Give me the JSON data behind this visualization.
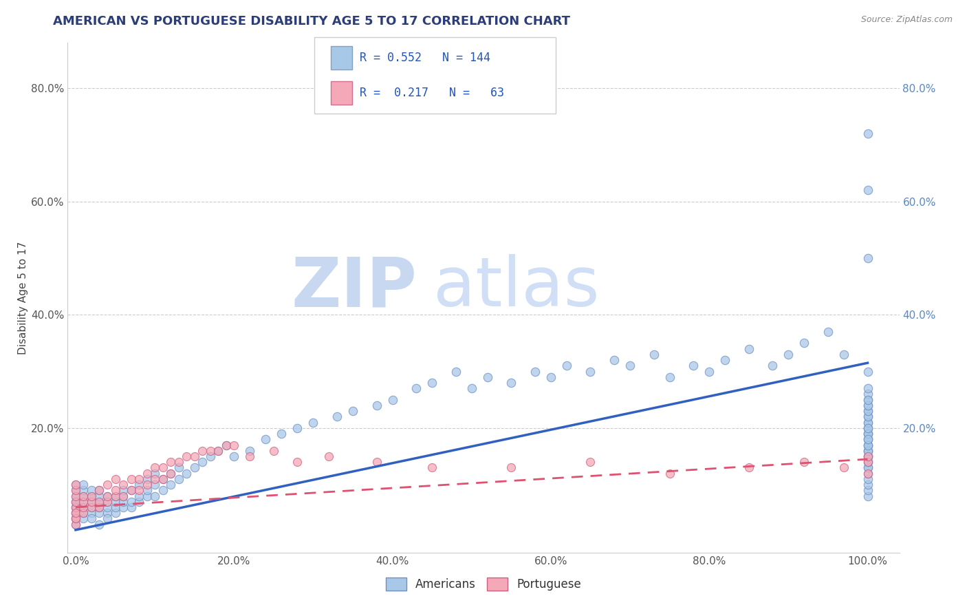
{
  "title": "AMERICAN VS PORTUGUESE DISABILITY AGE 5 TO 17 CORRELATION CHART",
  "source": "Source: ZipAtlas.com",
  "ylabel": "Disability Age 5 to 17",
  "xlabel": "",
  "xlim": [
    -0.01,
    1.04
  ],
  "ylim": [
    -0.02,
    0.88
  ],
  "xtick_vals": [
    0.0,
    0.2,
    0.4,
    0.6,
    0.8,
    1.0
  ],
  "ytick_vals": [
    0.2,
    0.4,
    0.6,
    0.8
  ],
  "R_american": 0.552,
  "N_american": 144,
  "R_portuguese": 0.217,
  "N_portuguese": 63,
  "color_american": "#A8C8E8",
  "color_portuguese": "#F4A8B8",
  "color_line_american": "#3060C0",
  "color_line_portuguese": "#E05070",
  "line_portuguese_style": "--",
  "seed": 12345,
  "am_x": [
    0.0,
    0.0,
    0.0,
    0.0,
    0.0,
    0.0,
    0.0,
    0.0,
    0.0,
    0.0,
    0.0,
    0.0,
    0.01,
    0.01,
    0.01,
    0.01,
    0.01,
    0.01,
    0.01,
    0.02,
    0.02,
    0.02,
    0.02,
    0.02,
    0.02,
    0.03,
    0.03,
    0.03,
    0.03,
    0.03,
    0.03,
    0.04,
    0.04,
    0.04,
    0.04,
    0.04,
    0.05,
    0.05,
    0.05,
    0.05,
    0.06,
    0.06,
    0.06,
    0.06,
    0.07,
    0.07,
    0.07,
    0.08,
    0.08,
    0.08,
    0.09,
    0.09,
    0.09,
    0.1,
    0.1,
    0.1,
    0.11,
    0.11,
    0.12,
    0.12,
    0.13,
    0.13,
    0.14,
    0.15,
    0.16,
    0.17,
    0.18,
    0.19,
    0.2,
    0.22,
    0.24,
    0.26,
    0.28,
    0.3,
    0.33,
    0.35,
    0.38,
    0.4,
    0.43,
    0.45,
    0.48,
    0.5,
    0.52,
    0.55,
    0.58,
    0.6,
    0.62,
    0.65,
    0.68,
    0.7,
    0.73,
    0.75,
    0.78,
    0.8,
    0.82,
    0.85,
    0.88,
    0.9,
    0.92,
    0.95,
    0.97,
    1.0,
    1.0,
    1.0,
    1.0,
    1.0,
    1.0,
    1.0,
    1.0,
    1.0,
    1.0,
    1.0,
    1.0,
    1.0,
    1.0,
    1.0,
    1.0,
    1.0,
    1.0,
    1.0,
    1.0,
    1.0,
    1.0,
    1.0,
    1.0,
    1.0,
    1.0,
    1.0,
    1.0,
    1.0,
    1.0,
    1.0,
    1.0,
    1.0,
    1.0,
    1.0,
    1.0,
    1.0,
    1.0,
    1.0,
    1.0,
    1.0,
    1.0,
    1.0
  ],
  "am_y": [
    0.04,
    0.05,
    0.05,
    0.06,
    0.06,
    0.07,
    0.07,
    0.08,
    0.03,
    0.04,
    0.09,
    0.1,
    0.04,
    0.05,
    0.06,
    0.07,
    0.08,
    0.09,
    0.1,
    0.05,
    0.06,
    0.07,
    0.08,
    0.09,
    0.04,
    0.05,
    0.06,
    0.07,
    0.08,
    0.09,
    0.03,
    0.05,
    0.06,
    0.07,
    0.08,
    0.04,
    0.05,
    0.06,
    0.07,
    0.08,
    0.06,
    0.07,
    0.08,
    0.09,
    0.06,
    0.07,
    0.09,
    0.07,
    0.08,
    0.1,
    0.08,
    0.09,
    0.11,
    0.08,
    0.1,
    0.12,
    0.09,
    0.11,
    0.1,
    0.12,
    0.11,
    0.13,
    0.12,
    0.13,
    0.14,
    0.15,
    0.16,
    0.17,
    0.15,
    0.16,
    0.18,
    0.19,
    0.2,
    0.21,
    0.22,
    0.23,
    0.24,
    0.25,
    0.27,
    0.28,
    0.3,
    0.27,
    0.29,
    0.28,
    0.3,
    0.29,
    0.31,
    0.3,
    0.32,
    0.31,
    0.33,
    0.29,
    0.31,
    0.3,
    0.32,
    0.34,
    0.31,
    0.33,
    0.35,
    0.37,
    0.33,
    0.08,
    0.09,
    0.1,
    0.11,
    0.12,
    0.13,
    0.14,
    0.15,
    0.16,
    0.17,
    0.18,
    0.19,
    0.2,
    0.13,
    0.14,
    0.15,
    0.16,
    0.17,
    0.21,
    0.22,
    0.23,
    0.18,
    0.19,
    0.2,
    0.21,
    0.15,
    0.16,
    0.22,
    0.23,
    0.24,
    0.25,
    0.19,
    0.2,
    0.26,
    0.27,
    0.17,
    0.18,
    0.24,
    0.25,
    0.5,
    0.62,
    0.3,
    0.72
  ],
  "pt_x": [
    0.0,
    0.0,
    0.0,
    0.0,
    0.0,
    0.0,
    0.0,
    0.0,
    0.0,
    0.0,
    0.01,
    0.01,
    0.01,
    0.01,
    0.02,
    0.02,
    0.02,
    0.03,
    0.03,
    0.03,
    0.04,
    0.04,
    0.04,
    0.05,
    0.05,
    0.05,
    0.06,
    0.06,
    0.07,
    0.07,
    0.08,
    0.08,
    0.09,
    0.09,
    0.1,
    0.1,
    0.11,
    0.11,
    0.12,
    0.12,
    0.13,
    0.14,
    0.15,
    0.16,
    0.17,
    0.18,
    0.19,
    0.2,
    0.22,
    0.25,
    0.28,
    0.32,
    0.38,
    0.45,
    0.55,
    0.65,
    0.75,
    0.85,
    0.92,
    0.97,
    1.0,
    1.0,
    1.0
  ],
  "pt_y": [
    0.03,
    0.04,
    0.05,
    0.06,
    0.07,
    0.08,
    0.09,
    0.1,
    0.04,
    0.05,
    0.05,
    0.06,
    0.07,
    0.08,
    0.06,
    0.07,
    0.08,
    0.06,
    0.07,
    0.09,
    0.07,
    0.08,
    0.1,
    0.08,
    0.09,
    0.11,
    0.08,
    0.1,
    0.09,
    0.11,
    0.09,
    0.11,
    0.1,
    0.12,
    0.11,
    0.13,
    0.11,
    0.13,
    0.12,
    0.14,
    0.14,
    0.15,
    0.15,
    0.16,
    0.16,
    0.16,
    0.17,
    0.17,
    0.15,
    0.16,
    0.14,
    0.15,
    0.14,
    0.13,
    0.13,
    0.14,
    0.12,
    0.13,
    0.14,
    0.13,
    0.12,
    0.14,
    0.15
  ],
  "trend_am_x0": 0.0,
  "trend_am_x1": 1.0,
  "trend_am_y0": 0.02,
  "trend_am_y1": 0.315,
  "trend_pt_x0": 0.0,
  "trend_pt_x1": 1.0,
  "trend_pt_y0": 0.06,
  "trend_pt_y1": 0.145
}
